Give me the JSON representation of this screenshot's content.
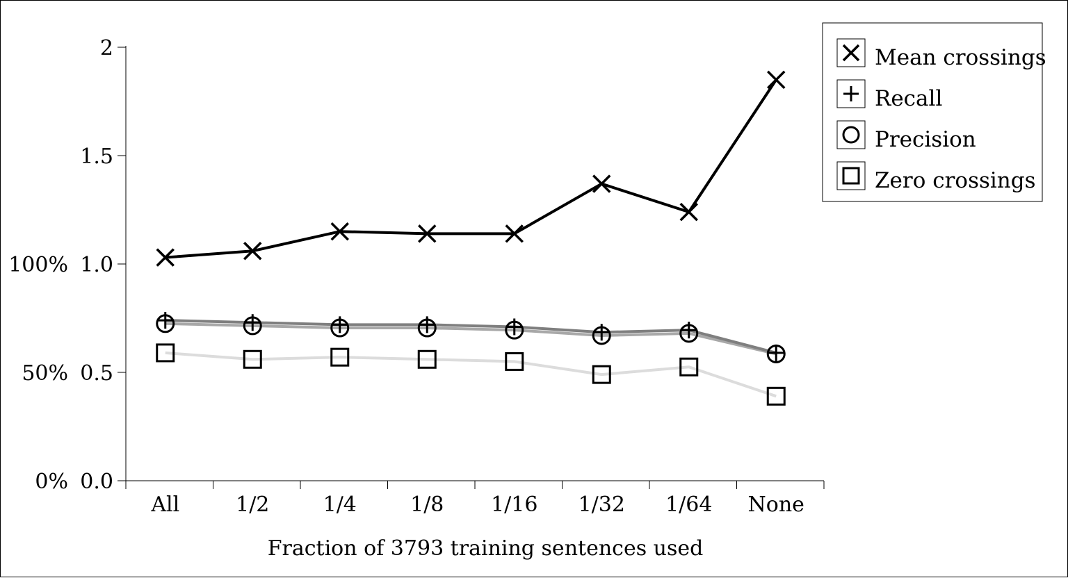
{
  "chart_data": {
    "type": "line",
    "xlabel": "Fraction of 3793 training sentences used",
    "ylabel": "",
    "categories": [
      "All",
      "1/2",
      "1/4",
      "1/8",
      "1/16",
      "1/32",
      "1/64",
      "None"
    ],
    "ylim": [
      0,
      2
    ],
    "yticks": [
      "0.0",
      "0.5",
      "1.0",
      "1.5",
      "2"
    ],
    "yticks_percent": [
      "0%",
      "50%",
      "100%"
    ],
    "grid": false,
    "legend_placement": "top-right",
    "series": [
      {
        "name": "Mean crossings",
        "marker": "x",
        "color": "#000000",
        "values": [
          1.03,
          1.06,
          1.15,
          1.14,
          1.14,
          1.37,
          1.24,
          1.85
        ]
      },
      {
        "name": "Recall",
        "marker": "plus",
        "color": "#7f7f7f",
        "values": [
          0.74,
          0.73,
          0.72,
          0.72,
          0.71,
          0.685,
          0.695,
          0.59
        ]
      },
      {
        "name": "Precision",
        "marker": "circle",
        "color": "#a8a8a8",
        "values": [
          0.725,
          0.715,
          0.705,
          0.705,
          0.695,
          0.67,
          0.68,
          0.585
        ]
      },
      {
        "name": "Zero crossings",
        "marker": "square",
        "color": "#dcdcdc",
        "values": [
          0.59,
          0.56,
          0.57,
          0.56,
          0.55,
          0.49,
          0.525,
          0.39
        ]
      }
    ]
  }
}
